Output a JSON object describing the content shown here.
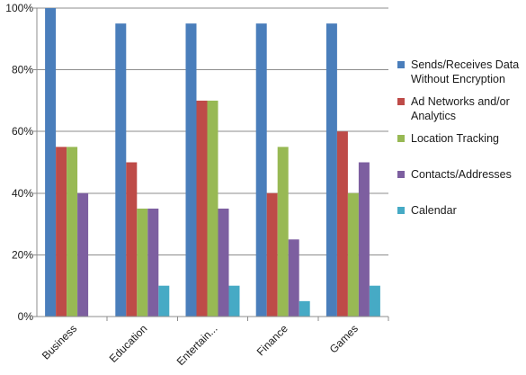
{
  "chart_data": {
    "type": "bar",
    "categories": [
      "Business",
      "Education",
      "Entertain...",
      "Finance",
      "Games"
    ],
    "series": [
      {
        "name": "Sends/Receives Data Without Encryption",
        "color": "#4a7ebb",
        "values": [
          100,
          95,
          95,
          95,
          95
        ]
      },
      {
        "name": "Ad Networks and/or Analytics",
        "color": "#be4b48",
        "values": [
          55,
          50,
          70,
          40,
          60
        ]
      },
      {
        "name": "Location Tracking",
        "color": "#98b954",
        "values": [
          55,
          35,
          70,
          55,
          40
        ]
      },
      {
        "name": "Contacts/Addresses",
        "color": "#7d5fa0",
        "values": [
          40,
          35,
          35,
          25,
          50
        ]
      },
      {
        "name": "Calendar",
        "color": "#46aac5",
        "values": [
          0,
          10,
          10,
          5,
          10
        ]
      }
    ],
    "yticks": [
      "0%",
      "20%",
      "40%",
      "60%",
      "80%",
      "100%"
    ],
    "ylim": [
      0,
      100
    ],
    "grid": true,
    "legend_position": "right"
  }
}
